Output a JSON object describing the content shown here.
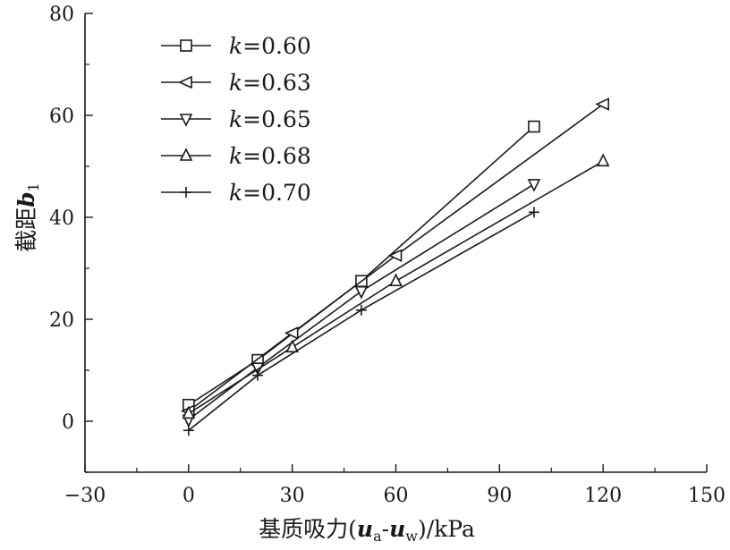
{
  "chart_data": {
    "type": "line",
    "title": "",
    "xlabel": "基质吸力(ua-uw)/kPa",
    "xlabel_parts": {
      "prefix": "基质吸力(",
      "var1": "u",
      "sub1": "a",
      "dash": "-",
      "var2": "u",
      "sub2": "w",
      "suffix": ")/kPa"
    },
    "ylabel": "截距b1",
    "ylabel_parts": {
      "prefix": "截距",
      "var": "b",
      "sub": "1"
    },
    "xlim": [
      -30,
      150
    ],
    "ylim": [
      -10,
      80
    ],
    "xticks": [
      -30,
      0,
      30,
      60,
      90,
      120,
      150
    ],
    "xtick_labels": [
      "−30",
      "0",
      "30",
      "60",
      "90",
      "120",
      "150"
    ],
    "yticks": [
      0,
      20,
      40,
      60,
      80
    ],
    "ytick_labels": [
      "0",
      "20",
      "40",
      "60",
      "80"
    ],
    "grid": false,
    "legend_position": "top-left",
    "series": [
      {
        "name": "k=0.60",
        "label_var": "k",
        "label_value": "=0.60",
        "marker": "square",
        "x": [
          0,
          20,
          50,
          100
        ],
        "y": [
          3.2,
          12.0,
          27.5,
          57.8
        ]
      },
      {
        "name": "k=0.63",
        "label_var": "k",
        "label_value": "=0.63",
        "marker": "triangle-left",
        "x": [
          0,
          30,
          60,
          120
        ],
        "y": [
          2.0,
          17.3,
          32.5,
          62.2
        ]
      },
      {
        "name": "k=0.65",
        "label_var": "k",
        "label_value": "=0.65",
        "marker": "triangle-down",
        "x": [
          0,
          20,
          50,
          100
        ],
        "y": [
          0.3,
          10.5,
          25.5,
          46.5
        ]
      },
      {
        "name": "k=0.68",
        "label_var": "k",
        "label_value": "=0.68",
        "marker": "triangle-up",
        "x": [
          0,
          30,
          60,
          120
        ],
        "y": [
          1.5,
          14.5,
          27.5,
          51.0
        ]
      },
      {
        "name": "k=0.70",
        "label_var": "k",
        "label_value": "=0.70",
        "marker": "plus",
        "x": [
          0,
          20,
          50,
          100
        ],
        "y": [
          -1.8,
          9.0,
          21.8,
          41.0
        ]
      }
    ]
  }
}
